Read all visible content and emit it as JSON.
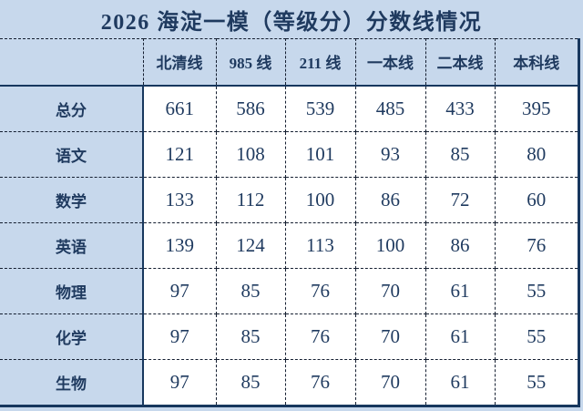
{
  "title": "2026 海淀一模（等级分）分数线情况",
  "colors": {
    "background": "#c7d8ec",
    "data_cell_background": "#ffffff",
    "text": "#1f3a5f",
    "solid_border": "#17375e",
    "dashed_border": "#141e30"
  },
  "chart_data": {
    "type": "table",
    "title": "2026 海淀一模（等级分）分数线情况",
    "corner_label": "",
    "columns": [
      "北清线",
      "985 线",
      "211 线",
      "一本线",
      "二本线",
      "本科线"
    ],
    "row_labels": [
      "总分",
      "语文",
      "数学",
      "英语",
      "物理",
      "化学",
      "生物"
    ],
    "rows": [
      {
        "label": "总分",
        "values": [
          661,
          586,
          539,
          485,
          433,
          395
        ]
      },
      {
        "label": "语文",
        "values": [
          121,
          108,
          101,
          93,
          85,
          80
        ]
      },
      {
        "label": "数学",
        "values": [
          133,
          112,
          100,
          86,
          72,
          60
        ]
      },
      {
        "label": "英语",
        "values": [
          139,
          124,
          113,
          100,
          86,
          76
        ]
      },
      {
        "label": "物理",
        "values": [
          97,
          85,
          76,
          70,
          61,
          55
        ]
      },
      {
        "label": "化学",
        "values": [
          97,
          85,
          76,
          70,
          61,
          55
        ]
      },
      {
        "label": "生物",
        "values": [
          97,
          85,
          76,
          70,
          61,
          55
        ]
      }
    ]
  }
}
